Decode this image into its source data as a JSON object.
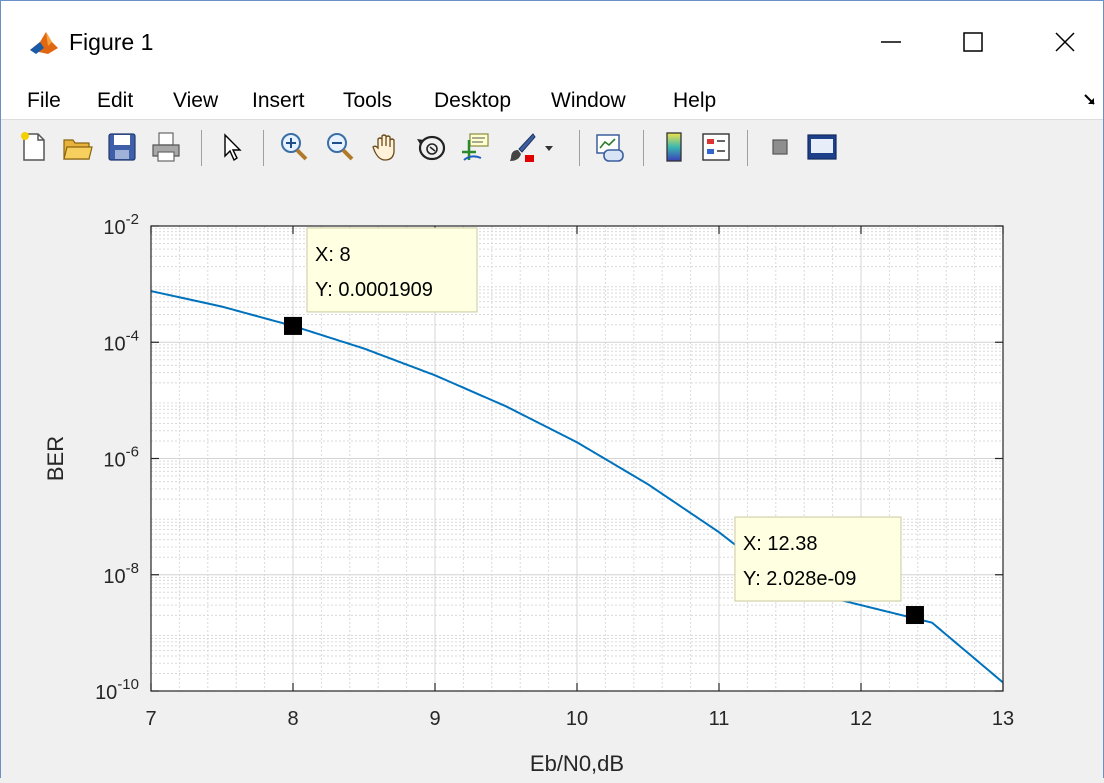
{
  "window": {
    "title": "Figure 1",
    "controls": {
      "minimize": "—",
      "maximize": "☐",
      "close": "✕"
    }
  },
  "menu": [
    "File",
    "Edit",
    "View",
    "Insert",
    "Tools",
    "Desktop",
    "Window",
    "Help"
  ],
  "toolbar": [
    "new-figure-icon",
    "open-file-icon",
    "save-icon",
    "print-icon",
    "pointer-icon",
    "zoom-in-icon",
    "zoom-out-icon",
    "pan-hand-icon",
    "rotate-3d-icon",
    "data-cursor-icon",
    "brush-icon",
    "dropdown-arrow-icon",
    "link-plot-icon",
    "colorbar-icon",
    "legend-icon",
    "hide-plot-tools-icon",
    "show-plot-tools-icon"
  ],
  "chart_data": {
    "type": "line",
    "xlabel": "Eb/N0,dB",
    "ylabel": "BER",
    "xlim": [
      7,
      13
    ],
    "ylim": [
      1e-10,
      0.01
    ],
    "yscale": "log",
    "grid": true,
    "minor_grid": true,
    "x_ticks": [
      "7",
      "8",
      "9",
      "10",
      "11",
      "12",
      "13"
    ],
    "y_ticks": [
      {
        "base": "10",
        "exp": "-10",
        "value": 1e-10
      },
      {
        "base": "10",
        "exp": "-8",
        "value": 1e-08
      },
      {
        "base": "10",
        "exp": "-6",
        "value": 1e-06
      },
      {
        "base": "10",
        "exp": "-4",
        "value": 0.0001
      },
      {
        "base": "10",
        "exp": "-2",
        "value": 0.01
      }
    ],
    "series": [
      {
        "color": "#0072bd",
        "x": [
          7,
          7.5,
          8,
          8.5,
          9,
          9.5,
          10,
          10.5,
          11,
          11.5,
          12,
          12.38,
          12.5,
          13
        ],
        "y": [
          0.00076,
          0.00041,
          0.0001909,
          7.8e-05,
          2.7e-05,
          7.9e-06,
          1.9e-06,
          3.6e-07,
          5.4e-08,
          6e-09,
          4.8e-10,
          2.028e-09,
          1.5e-09,
          1.4e-10
        ]
      }
    ],
    "datatips": [
      {
        "x": 8,
        "y": 0.0001909,
        "line1": "X: 8",
        "line2": "Y: 0.0001909"
      },
      {
        "x": 12.38,
        "y": 2.028e-09,
        "line1": "X: 12.38",
        "line2": "Y: 2.028e-09"
      }
    ],
    "colors": {
      "line": "#0072bd",
      "datatip_bg": "#ffffe1",
      "datatip_border": "#c9c9a0",
      "marker": "#000000"
    }
  }
}
